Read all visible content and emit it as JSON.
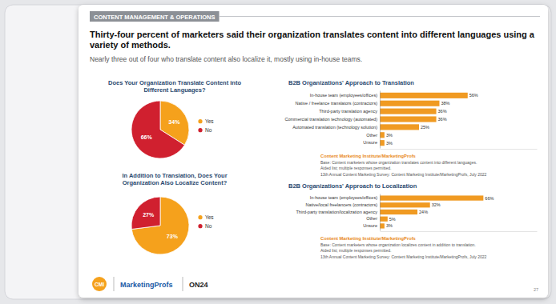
{
  "page": {
    "section": "CONTENT MANAGEMENT & OPERATIONS",
    "title": "Thirty-four percent of marketers said their organization translates content into different languages using a variety of methods.",
    "subtitle": "Nearly three out of four who translate content also localize it, mostly using in-house teams.",
    "footer": {
      "logos": [
        "CMI",
        "MarketingProfs",
        "ON24"
      ],
      "page_number": "27"
    }
  },
  "chart_data": [
    {
      "type": "pie",
      "title": "Does Your Organization Translate Content into Different Languages?",
      "categories": [
        "Yes",
        "No"
      ],
      "values": [
        34,
        66
      ],
      "value_labels": [
        "34%",
        "66%"
      ],
      "colors": [
        "#f5a11c",
        "#d0202f"
      ],
      "data_labels": true,
      "legend": "right"
    },
    {
      "type": "pie",
      "title": "In Addition to Translation, Does Your Organization Also Localize Content?",
      "categories": [
        "Yes",
        "No"
      ],
      "values": [
        73,
        27
      ],
      "value_labels": [
        "73%",
        "27%"
      ],
      "colors": [
        "#f5a11c",
        "#d0202f"
      ],
      "data_labels": true,
      "legend": "right"
    },
    {
      "type": "bar",
      "orientation": "horizontal",
      "title": "B2B Organizations' Approach to Translation",
      "categories": [
        "In-house team (employees/offices)",
        "Native / freelance translators (contractors)",
        "Third-party translation agency",
        "Commercial translation technology (automated)",
        "Automated translation (technology solution)",
        "Other",
        "Unsure"
      ],
      "values": [
        56,
        38,
        36,
        36,
        25,
        3,
        3
      ],
      "value_labels": [
        "56%",
        "38%",
        "36%",
        "36%",
        "25%",
        "3%",
        "3%"
      ],
      "color": "#f09a22",
      "xlim": [
        0,
        100
      ],
      "data_labels": true,
      "tick_labels": "y",
      "annotations": [
        "Content Marketing Institute/MarketingProfs",
        "Base: Content marketers whose organization translates content into different languages.",
        "Aided list; multiple responses permitted.",
        "13th Annual Content Marketing Survey: Content Marketing Institute/MarketingProfs, July 2022"
      ]
    },
    {
      "type": "bar",
      "orientation": "horizontal",
      "title": "B2B Organizations' Approach to Localization",
      "categories": [
        "In-house team (employees/offices)",
        "Native/local freelancers (contractors)",
        "Third-party translation/localization agency",
        "Other",
        "Unsure"
      ],
      "values": [
        66,
        32,
        24,
        5,
        3
      ],
      "value_labels": [
        "66%",
        "32%",
        "24%",
        "5%",
        "3%"
      ],
      "color": "#f09a22",
      "xlim": [
        0,
        100
      ],
      "data_labels": true,
      "tick_labels": "y",
      "annotations": [
        "Content Marketing Institute/MarketingProfs",
        "Base: Content marketers whose organization localizes content in addition to translation.",
        "Aided list; multiple responses permitted.",
        "13th Annual Content Marketing Survey: Content Marketing Institute/MarketingProfs, July 2022"
      ]
    }
  ]
}
